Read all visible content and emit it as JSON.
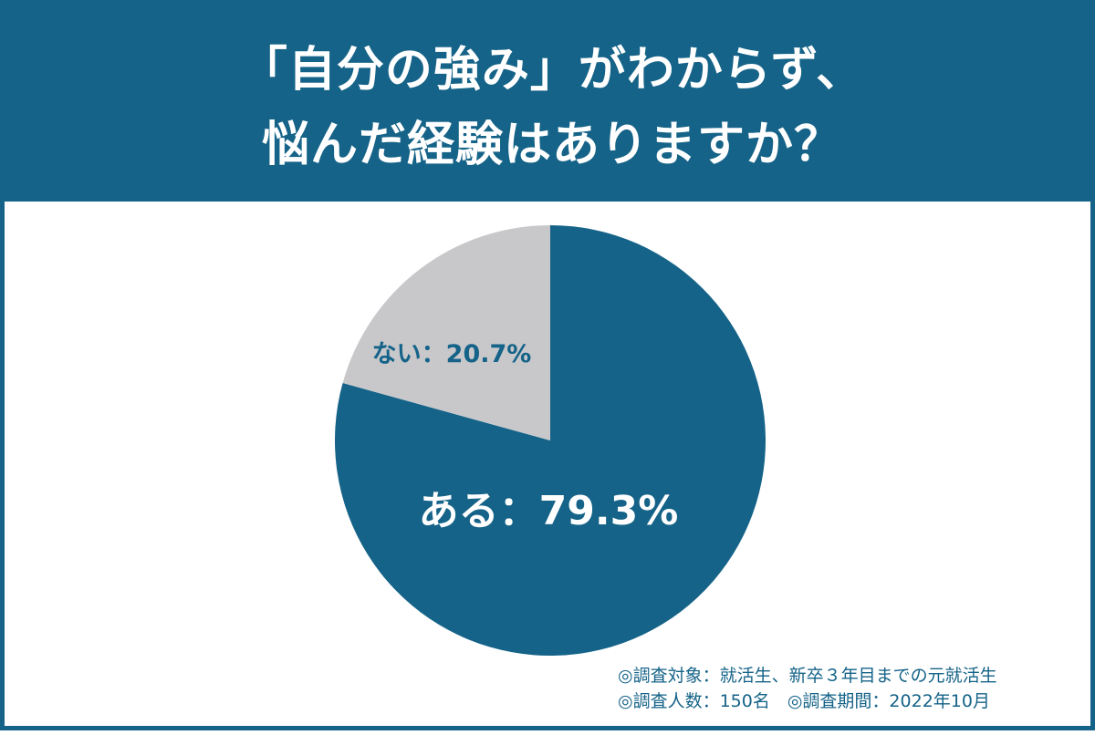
{
  "title": {
    "line1": "「自分の強み」がわからず、",
    "line2": "悩んだ経験はありますか？"
  },
  "chart_data": {
    "type": "pie",
    "slices": [
      {
        "label": "ある",
        "value": 79.3,
        "display": "ある：79.3%",
        "color": "#156388",
        "label_color": "#ffffff"
      },
      {
        "label": "ない",
        "value": 20.7,
        "display": "ない：20.7%",
        "color": "#c8c8cb",
        "label_color": "#156388"
      }
    ],
    "start": "12 o'clock",
    "direction": "clockwise"
  },
  "notes": {
    "line1": "◎調査対象：就活生、新卒３年目までの元就活生",
    "line2": "◎調査人数：150名　◎調査期間：2022年10月"
  },
  "colors": {
    "brand": "#156388",
    "secondary": "#c8c8cb",
    "background": "#ffffff"
  }
}
